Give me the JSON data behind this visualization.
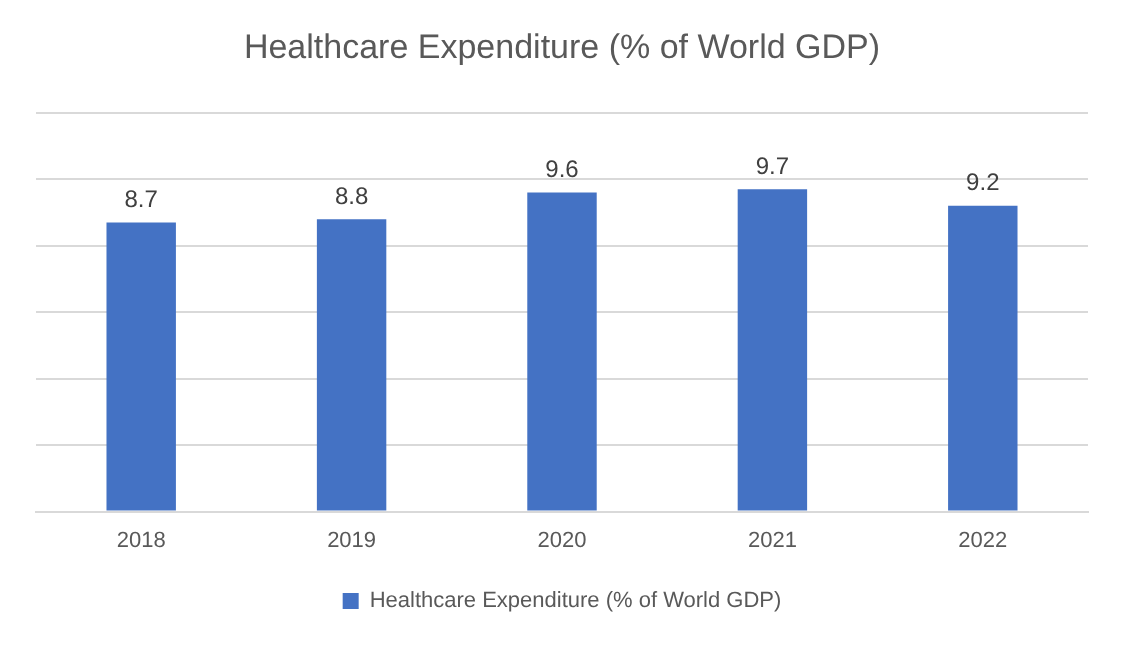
{
  "chart_data": {
    "type": "bar",
    "title": "Healthcare Expenditure (% of World GDP)",
    "categories": [
      "2018",
      "2019",
      "2020",
      "2021",
      "2022"
    ],
    "series": [
      {
        "name": "Healthcare Expenditure (% of World GDP)",
        "color": "#4472c4",
        "values": [
          8.7,
          8.8,
          9.6,
          9.7,
          9.2
        ]
      }
    ],
    "ylim": [
      0,
      12
    ],
    "yticks": [
      {
        "value": 0,
        "label": null
      },
      {
        "value": 2,
        "label": null
      },
      {
        "value": 4,
        "label": null
      },
      {
        "value": 6,
        "label": null
      },
      {
        "value": 8,
        "label": null
      },
      {
        "value": 10,
        "label": null
      },
      {
        "value": 12,
        "label": null
      }
    ],
    "tick_labels": "x",
    "grid": "y",
    "legend": "bottom",
    "data_labels": true
  }
}
